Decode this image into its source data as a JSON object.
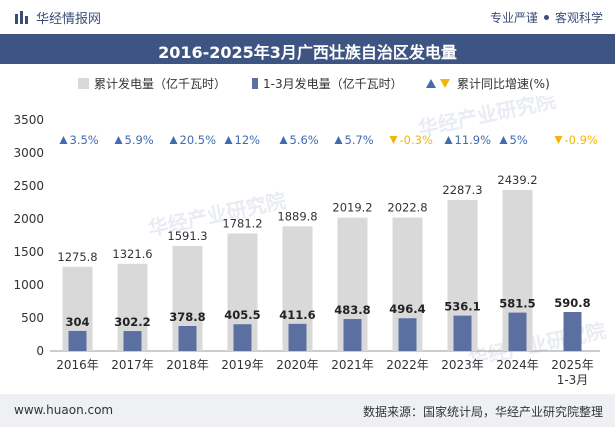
{
  "header": {
    "brand": "华经情报网",
    "slogan_1": "专业严谨",
    "slogan_2": "客观科学",
    "title": "2016-2025年3月广西壮族自治区发电量"
  },
  "legend": {
    "total_label": "累计发电量（亿千瓦时）",
    "q1_label": "1-3月发电量（亿千瓦时）",
    "growth_label": "累计同比增速(%)"
  },
  "footer": {
    "url": "www.huaon.com",
    "source": "数据来源：国家统计局，华经产业研究院整理"
  },
  "watermark": "华经产业研究院",
  "colors": {
    "title_bg": "#3e5482",
    "total_bar": "#d9d9d9",
    "q1_bar": "#5b6fa0",
    "growth_up": "#3e6cae",
    "growth_down": "#f2b705",
    "footer_bg": "#eef0f4"
  },
  "chart_data": {
    "type": "bar",
    "categories": [
      "2016年",
      "2017年",
      "2018年",
      "2019年",
      "2020年",
      "2021年",
      "2022年",
      "2023年",
      "2024年",
      "2025年\n1-3月"
    ],
    "series": [
      {
        "name": "累计发电量（亿千瓦时）",
        "values": [
          1275.8,
          1321.6,
          1591.3,
          1781.2,
          1889.8,
          2019.2,
          2022.8,
          2287.3,
          2439.2,
          null
        ]
      },
      {
        "name": "1-3月发电量（亿千瓦时）",
        "values": [
          304,
          302.2,
          378.8,
          405.5,
          411.6,
          483.8,
          496.4,
          536.1,
          581.5,
          590.8
        ]
      },
      {
        "name": "累计同比增速(%)",
        "values": [
          3.5,
          5.9,
          20.5,
          12,
          5.6,
          5.7,
          -0.3,
          11.9,
          5,
          -0.9
        ]
      }
    ],
    "growth_labels": [
      "3.5%",
      "5.9%",
      "20.5%",
      "12%",
      "5.6%",
      "5.7%",
      "-0.3%",
      "11.9%",
      "5%",
      "-0.9%"
    ],
    "ylim": [
      0,
      3500
    ],
    "yticks": [
      0,
      500,
      1000,
      1500,
      2000,
      2500,
      3000,
      3500
    ],
    "legend_position": "top"
  }
}
